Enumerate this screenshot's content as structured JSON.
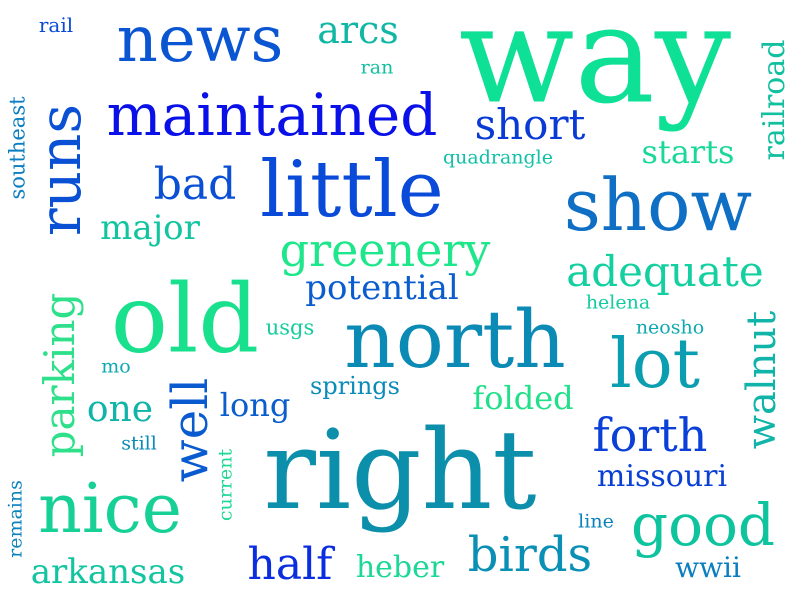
{
  "words": [
    {
      "text": "way",
      "color": "#0ee096"
    },
    {
      "text": "right",
      "color": "#0c8fab"
    },
    {
      "text": "old",
      "color": "#18e08c"
    },
    {
      "text": "north",
      "color": "#0a8ab5"
    },
    {
      "text": "little",
      "color": "#0a4ad8"
    },
    {
      "text": "show",
      "color": "#0f6fc4"
    },
    {
      "text": "news",
      "color": "#0a55d2"
    },
    {
      "text": "maintained",
      "color": "#0a10e8"
    },
    {
      "text": "nice",
      "color": "#16d096"
    },
    {
      "text": "runs",
      "color": "#0a50d5"
    },
    {
      "text": "lot",
      "color": "#0a9eb0"
    },
    {
      "text": "good",
      "color": "#0ec49f"
    },
    {
      "text": "greenery",
      "color": "#1ee68a"
    },
    {
      "text": "adequate",
      "color": "#14cfa0"
    },
    {
      "text": "birds",
      "color": "#0a8fb5"
    },
    {
      "text": "parking",
      "color": "#2ee08a"
    },
    {
      "text": "well",
      "color": "#0a5ad0"
    },
    {
      "text": "walnut",
      "color": "#10b4a8"
    },
    {
      "text": "forth",
      "color": "#0a40d8"
    },
    {
      "text": "half",
      "color": "#0a2de0"
    },
    {
      "text": "bad",
      "color": "#0a4fd4"
    },
    {
      "text": "short",
      "color": "#0a3ad6"
    },
    {
      "text": "arcs",
      "color": "#10b7a4"
    },
    {
      "text": "potential",
      "color": "#0a5ccf"
    },
    {
      "text": "major",
      "color": "#12c4a0"
    },
    {
      "text": "one",
      "color": "#10b4a8"
    },
    {
      "text": "long",
      "color": "#0a5dcd"
    },
    {
      "text": "missouri",
      "color": "#0a3fd6"
    },
    {
      "text": "arkansas",
      "color": "#12c4a0"
    },
    {
      "text": "starts",
      "color": "#1ad79a"
    },
    {
      "text": "railroad",
      "color": "#12c0a0"
    },
    {
      "text": "folded",
      "color": "#22e08a"
    },
    {
      "text": "heber",
      "color": "#1cd896"
    },
    {
      "text": "springs",
      "color": "#0a8bb8"
    },
    {
      "text": "wwii",
      "color": "#0a7ec0"
    },
    {
      "text": "southeast",
      "color": "#0a7ec0"
    },
    {
      "text": "quadrangle",
      "color": "#12c0a8"
    },
    {
      "text": "usgs",
      "color": "#14cc9c"
    },
    {
      "text": "helena",
      "color": "#14cba0"
    },
    {
      "text": "neosho",
      "color": "#10a8b0"
    },
    {
      "text": "current",
      "color": "#1ed894"
    },
    {
      "text": "remains",
      "color": "#0a82bd"
    },
    {
      "text": "line",
      "color": "#0a82bd"
    },
    {
      "text": "still",
      "color": "#0a8bb8"
    },
    {
      "text": "rail",
      "color": "#0a4ad8"
    },
    {
      "text": "ran",
      "color": "#12c0a0"
    },
    {
      "text": "mo",
      "color": "#10a8b0"
    }
  ]
}
